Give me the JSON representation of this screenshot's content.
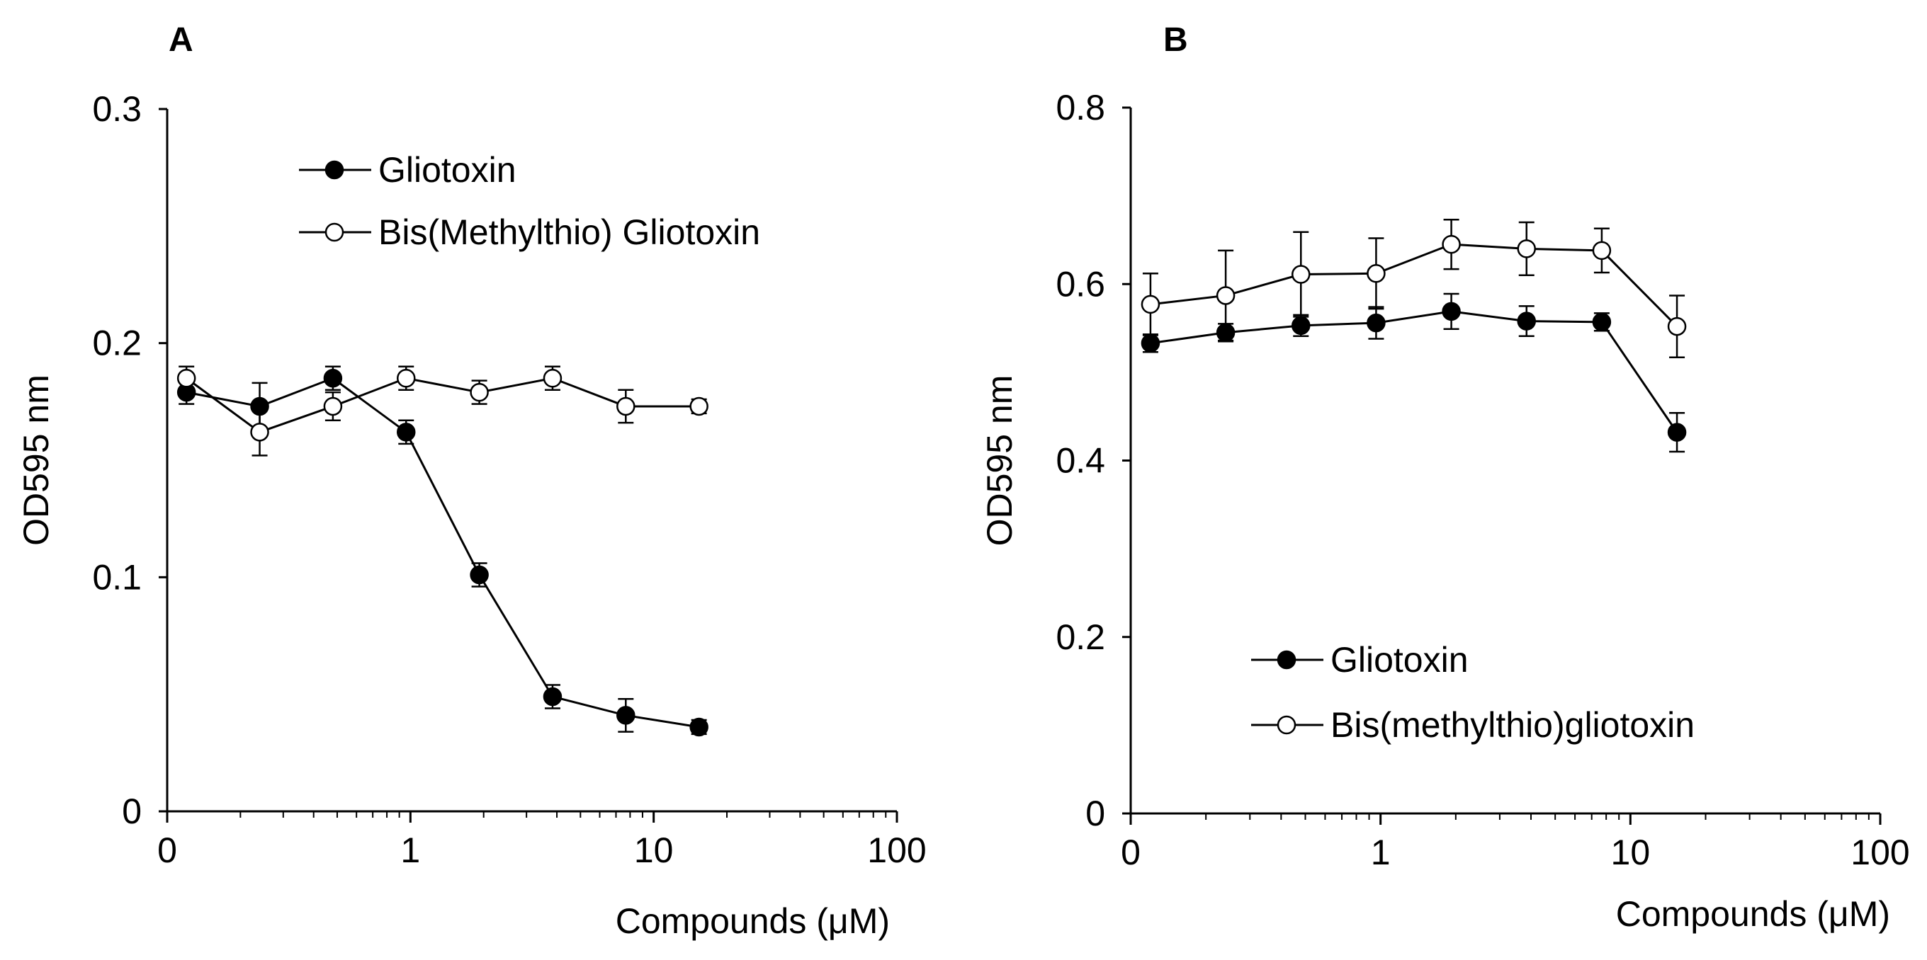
{
  "chart_data": [
    {
      "panel": "A",
      "type": "line",
      "xscale": "log",
      "xlabel": "Compounds (μM)",
      "ylabel": "OD595 nm",
      "xlim": [
        0.1,
        100
      ],
      "ylim": [
        0,
        0.3
      ],
      "x_ticks": [
        {
          "value": 0.1,
          "label": "0"
        },
        {
          "value": 1,
          "label": "1"
        },
        {
          "value": 10,
          "label": "10"
        },
        {
          "value": 100,
          "label": "100"
        }
      ],
      "y_ticks": [
        {
          "value": 0,
          "label": "0"
        },
        {
          "value": 0.1,
          "label": "0.1"
        },
        {
          "value": 0.2,
          "label": "0.2"
        },
        {
          "value": 0.3,
          "label": "0.3"
        }
      ],
      "legend_position": "top-center",
      "series": [
        {
          "name": "Gliotoxin",
          "marker": "filled-circle",
          "x": [
            0.12,
            0.24,
            0.48,
            0.96,
            1.92,
            3.84,
            7.68,
            15.36
          ],
          "values": [
            0.179,
            0.173,
            0.185,
            0.162,
            0.101,
            0.049,
            0.041,
            0.036
          ],
          "errors": [
            0.005,
            0.01,
            0.005,
            0.005,
            0.005,
            0.005,
            0.007,
            0.003
          ]
        },
        {
          "name": "Bis(Methylthio) Gliotoxin",
          "marker": "open-circle",
          "x": [
            0.12,
            0.24,
            0.48,
            0.96,
            1.92,
            3.84,
            7.68,
            15.36
          ],
          "values": [
            0.185,
            0.162,
            0.173,
            0.185,
            0.179,
            0.185,
            0.173,
            0.173
          ],
          "errors": [
            0.005,
            0.01,
            0.006,
            0.005,
            0.005,
            0.005,
            0.007,
            0.003
          ]
        }
      ]
    },
    {
      "panel": "B",
      "type": "line",
      "xscale": "log",
      "xlabel": "Compounds (μM)",
      "ylabel": "OD595 nm",
      "xlim": [
        0.1,
        100
      ],
      "ylim": [
        0,
        0.8
      ],
      "x_ticks": [
        {
          "value": 0.1,
          "label": "0"
        },
        {
          "value": 1,
          "label": "1"
        },
        {
          "value": 10,
          "label": "10"
        },
        {
          "value": 100,
          "label": "100"
        }
      ],
      "y_ticks": [
        {
          "value": 0,
          "label": "0"
        },
        {
          "value": 0.2,
          "label": "0.2"
        },
        {
          "value": 0.4,
          "label": "0.4"
        },
        {
          "value": 0.6,
          "label": "0.6"
        },
        {
          "value": 0.8,
          "label": "0.8"
        }
      ],
      "legend_position": "bottom-center",
      "series": [
        {
          "name": "Gliotoxin",
          "marker": "filled-circle",
          "x": [
            0.12,
            0.24,
            0.48,
            0.96,
            1.92,
            3.84,
            7.68,
            15.36
          ],
          "values": [
            0.533,
            0.545,
            0.553,
            0.556,
            0.569,
            0.558,
            0.557,
            0.432
          ],
          "errors": [
            0.01,
            0.01,
            0.012,
            0.018,
            0.02,
            0.017,
            0.01,
            0.022
          ]
        },
        {
          "name": "Bis(methylthio)gliotoxin",
          "marker": "open-circle",
          "x": [
            0.12,
            0.24,
            0.48,
            0.96,
            1.92,
            3.84,
            7.68,
            15.36
          ],
          "values": [
            0.577,
            0.587,
            0.611,
            0.612,
            0.645,
            0.64,
            0.638,
            0.552
          ],
          "errors": [
            0.035,
            0.051,
            0.048,
            0.04,
            0.028,
            0.03,
            0.025,
            0.035
          ]
        }
      ]
    }
  ]
}
